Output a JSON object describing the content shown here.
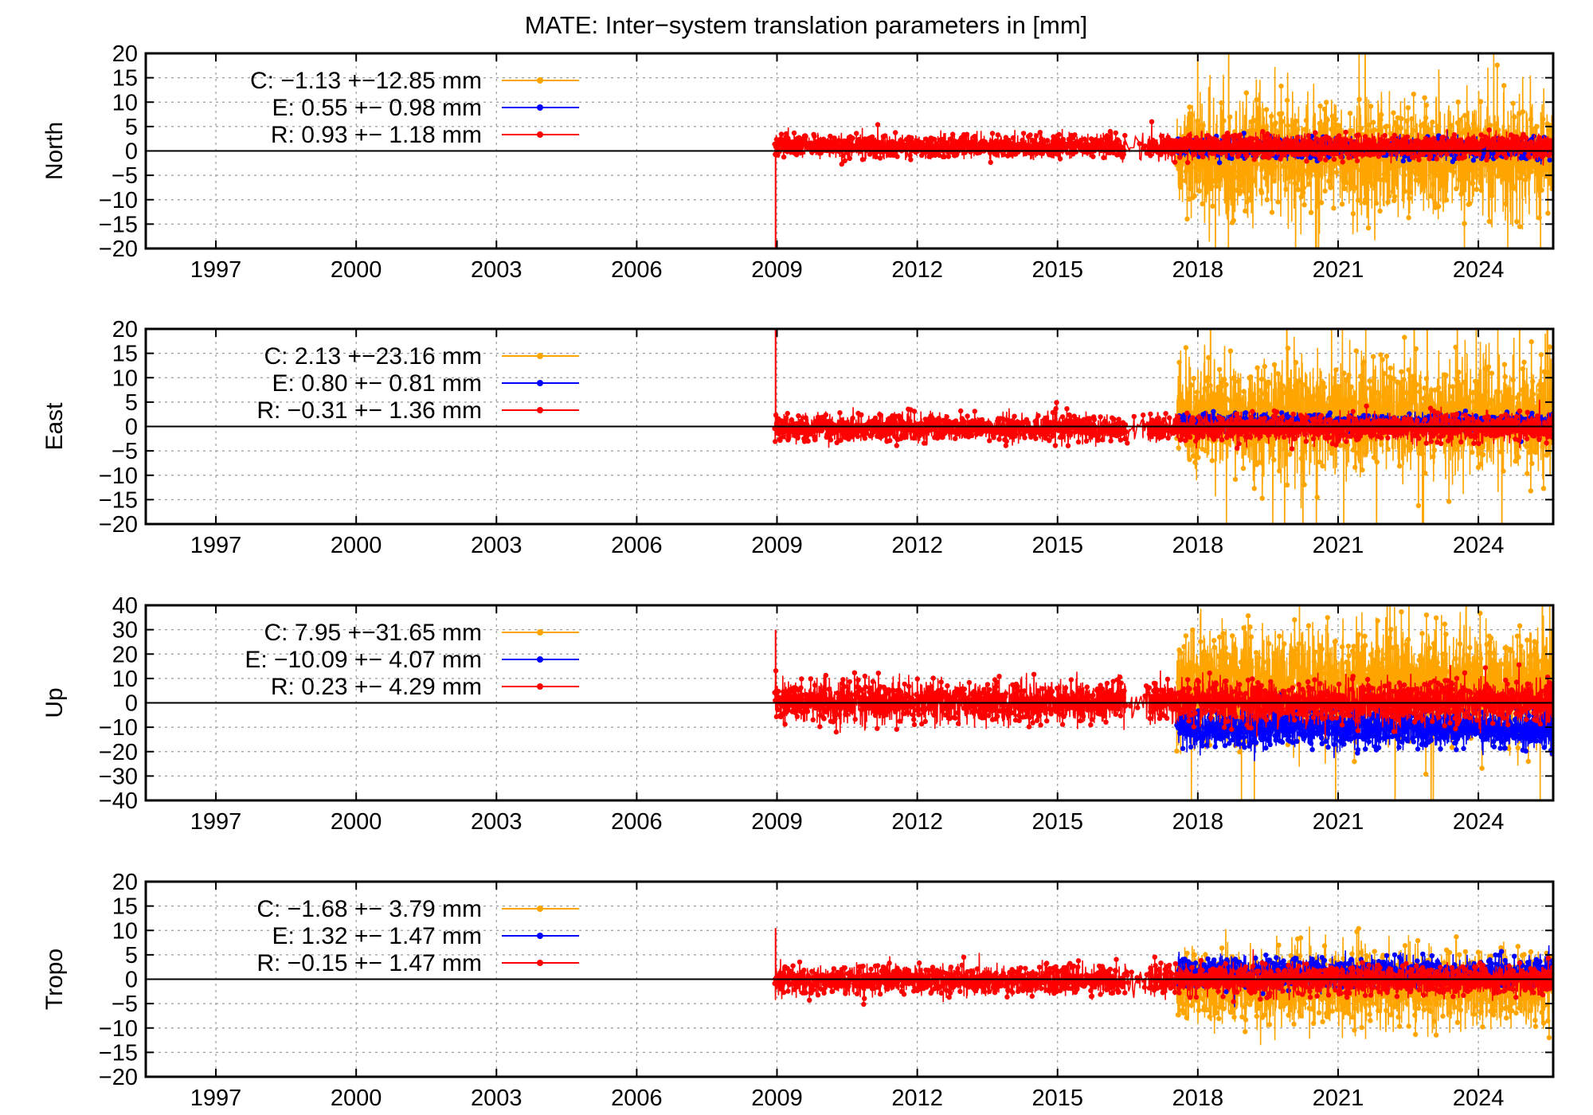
{
  "title": "MATE: Inter−system translation parameters in [mm]",
  "colors": {
    "C": "#ffa500",
    "E": "#0000ff",
    "R": "#ff0000",
    "grid": "#9a9a9a",
    "axis": "#000000"
  },
  "chart_data": [
    {
      "type": "line",
      "ylabel": "North",
      "xlim": [
        1995.5,
        2025.6
      ],
      "ylim": [
        -20,
        20
      ],
      "xticks": [
        1997,
        2000,
        2003,
        2006,
        2009,
        2012,
        2015,
        2018,
        2021,
        2024
      ],
      "xtick_labels": [
        "1997",
        "2000",
        "2003",
        "2006",
        "2009",
        "2012",
        "2015",
        "2018",
        "2021",
        "2024"
      ],
      "yticks": [
        20,
        15,
        10,
        5,
        0,
        -5,
        -10,
        -15,
        -20
      ],
      "ytick_labels": [
        "20",
        "15",
        "10",
        "5",
        "0",
        "−5",
        "−10",
        "−15",
        "−20"
      ],
      "grid": true,
      "legend_position": "top-left",
      "legend": [
        {
          "key": "C",
          "label": "C:  −1.13 +−12.85 mm"
        },
        {
          "key": "E",
          "label": "E:   0.55 +− 0.98 mm"
        },
        {
          "key": "R",
          "label": "R:   0.93 +− 1.18 mm"
        }
      ],
      "series": [
        {
          "key": "C",
          "start": 2017.55,
          "end": 2025.6,
          "mean": -1.13,
          "std": 12.85
        },
        {
          "key": "E",
          "start": 2017.55,
          "end": 2025.6,
          "mean": 0.55,
          "std": 0.98
        },
        {
          "key": "R",
          "start": 2008.95,
          "end": 2025.6,
          "mean": 0.93,
          "std": 1.18
        }
      ]
    },
    {
      "type": "line",
      "ylabel": "East",
      "xlim": [
        1995.5,
        2025.6
      ],
      "ylim": [
        -20,
        20
      ],
      "xticks": [
        1997,
        2000,
        2003,
        2006,
        2009,
        2012,
        2015,
        2018,
        2021,
        2024
      ],
      "xtick_labels": [
        "1997",
        "2000",
        "2003",
        "2006",
        "2009",
        "2012",
        "2015",
        "2018",
        "2021",
        "2024"
      ],
      "yticks": [
        20,
        15,
        10,
        5,
        0,
        -5,
        -10,
        -15,
        -20
      ],
      "ytick_labels": [
        "20",
        "15",
        "10",
        "5",
        "0",
        "−5",
        "−10",
        "−15",
        "−20"
      ],
      "grid": true,
      "legend_position": "top-left",
      "legend": [
        {
          "key": "C",
          "label": "C:   2.13 +−23.16 mm"
        },
        {
          "key": "E",
          "label": "E:   0.80 +− 0.81 mm"
        },
        {
          "key": "R",
          "label": "R:  −0.31 +− 1.36 mm"
        }
      ],
      "series": [
        {
          "key": "C",
          "start": 2017.55,
          "end": 2025.6,
          "mean": 2.13,
          "std": 23.16
        },
        {
          "key": "E",
          "start": 2017.55,
          "end": 2025.6,
          "mean": 0.8,
          "std": 0.81
        },
        {
          "key": "R",
          "start": 2008.95,
          "end": 2025.6,
          "mean": -0.31,
          "std": 1.36
        }
      ]
    },
    {
      "type": "line",
      "ylabel": "Up",
      "xlim": [
        1995.5,
        2025.6
      ],
      "ylim": [
        -40,
        40
      ],
      "xticks": [
        1997,
        2000,
        2003,
        2006,
        2009,
        2012,
        2015,
        2018,
        2021,
        2024
      ],
      "xtick_labels": [
        "1997",
        "2000",
        "2003",
        "2006",
        "2009",
        "2012",
        "2015",
        "2018",
        "2021",
        "2024"
      ],
      "yticks": [
        40,
        30,
        20,
        10,
        0,
        -10,
        -20,
        -30,
        -40
      ],
      "ytick_labels": [
        "40",
        "30",
        "20",
        "10",
        "0",
        "−10",
        "−20",
        "−30",
        "−40"
      ],
      "grid": true,
      "legend_position": "top-left",
      "legend": [
        {
          "key": "C",
          "label": "C:   7.95 +−31.65 mm"
        },
        {
          "key": "E",
          "label": "E: −10.09 +− 4.07 mm"
        },
        {
          "key": "R",
          "label": "R:   0.23 +− 4.29 mm"
        }
      ],
      "series": [
        {
          "key": "C",
          "start": 2017.55,
          "end": 2025.6,
          "mean": 7.95,
          "std": 31.65
        },
        {
          "key": "E",
          "start": 2017.55,
          "end": 2025.6,
          "mean": -10.09,
          "std": 4.07
        },
        {
          "key": "R",
          "start": 2008.95,
          "end": 2025.6,
          "mean": 0.23,
          "std": 4.29
        }
      ]
    },
    {
      "type": "line",
      "ylabel": "Tropo",
      "xlim": [
        1995.5,
        2025.6
      ],
      "ylim": [
        -20,
        20
      ],
      "xticks": [
        1997,
        2000,
        2003,
        2006,
        2009,
        2012,
        2015,
        2018,
        2021,
        2024
      ],
      "xtick_labels": [
        "1997",
        "2000",
        "2003",
        "2006",
        "2009",
        "2012",
        "2015",
        "2018",
        "2021",
        "2024"
      ],
      "yticks": [
        20,
        15,
        10,
        5,
        0,
        -5,
        -10,
        -15,
        -20
      ],
      "ytick_labels": [
        "20",
        "15",
        "10",
        "5",
        "0",
        "−5",
        "−10",
        "−15",
        "−20"
      ],
      "grid": true,
      "legend_position": "top-left",
      "legend": [
        {
          "key": "C",
          "label": "C:  −1.68 +− 3.79 mm"
        },
        {
          "key": "E",
          "label": "E:   1.32 +− 1.47 mm"
        },
        {
          "key": "R",
          "label": "R:  −0.15 +− 1.47 mm"
        }
      ],
      "series": [
        {
          "key": "C",
          "start": 2017.55,
          "end": 2025.6,
          "mean": -1.68,
          "std": 3.79
        },
        {
          "key": "E",
          "start": 2017.55,
          "end": 2025.6,
          "mean": 1.32,
          "std": 1.47
        },
        {
          "key": "R",
          "start": 2008.95,
          "end": 2025.6,
          "mean": -0.15,
          "std": 1.47
        }
      ]
    }
  ]
}
